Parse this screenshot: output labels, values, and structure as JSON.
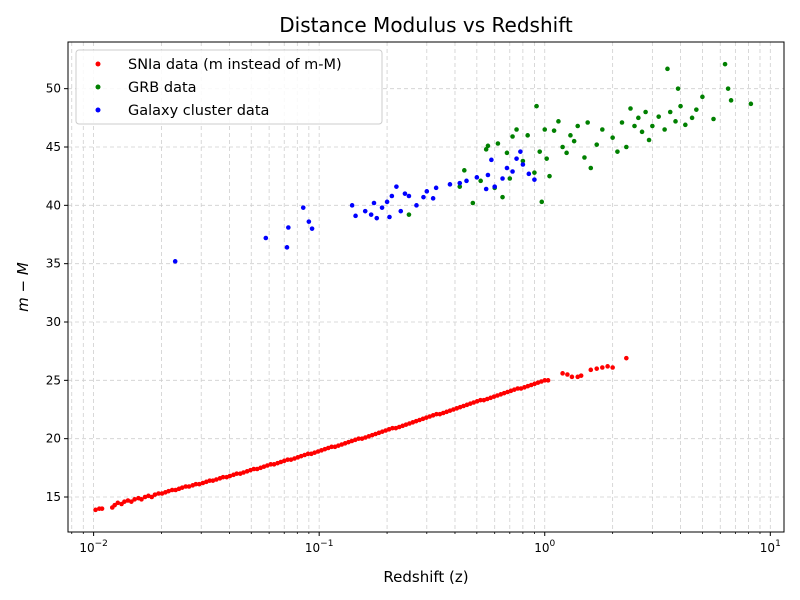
{
  "chart_data": {
    "type": "scatter",
    "title": "Distance Modulus vs Redshift",
    "xlabel": "Redshift (z)",
    "ylabel": "m − M",
    "xscale": "log",
    "xlim": [
      0.0077,
      11.5
    ],
    "ylim": [
      12.0,
      54.0
    ],
    "x_ticks": [
      {
        "value": 0.01,
        "base": "10",
        "exp": "−2"
      },
      {
        "value": 0.1,
        "base": "10",
        "exp": "−1"
      },
      {
        "value": 1,
        "base": "10",
        "exp": "0"
      },
      {
        "value": 10,
        "base": "10",
        "exp": "1"
      }
    ],
    "y_ticks": [
      15,
      20,
      25,
      30,
      35,
      40,
      45,
      50
    ],
    "grid": true,
    "legend_position": "top-left",
    "series": [
      {
        "name": "SNIa data (m instead of m-M)",
        "color": "#ff0000",
        "points": [
          [
            0.0102,
            13.9
          ],
          [
            0.0106,
            14.0
          ],
          [
            0.0109,
            14.0
          ],
          [
            0.0121,
            14.1
          ],
          [
            0.0124,
            14.3
          ],
          [
            0.0128,
            14.5
          ],
          [
            0.0133,
            14.4
          ],
          [
            0.0137,
            14.6
          ],
          [
            0.0142,
            14.7
          ],
          [
            0.0147,
            14.6
          ],
          [
            0.0152,
            14.8
          ],
          [
            0.0158,
            14.9
          ],
          [
            0.0163,
            14.8
          ],
          [
            0.0169,
            15.0
          ],
          [
            0.0175,
            15.1
          ],
          [
            0.0181,
            15.0
          ],
          [
            0.0187,
            15.2
          ],
          [
            0.0194,
            15.3
          ],
          [
            0.0201,
            15.3
          ],
          [
            0.0208,
            15.4
          ],
          [
            0.0215,
            15.5
          ],
          [
            0.0223,
            15.6
          ],
          [
            0.0231,
            15.6
          ],
          [
            0.0239,
            15.7
          ],
          [
            0.0247,
            15.8
          ],
          [
            0.0256,
            15.9
          ],
          [
            0.0265,
            15.9
          ],
          [
            0.0275,
            16.0
          ],
          [
            0.0284,
            16.1
          ],
          [
            0.0294,
            16.1
          ],
          [
            0.0305,
            16.2
          ],
          [
            0.0316,
            16.3
          ],
          [
            0.0327,
            16.4
          ],
          [
            0.0338,
            16.4
          ],
          [
            0.035,
            16.5
          ],
          [
            0.0363,
            16.6
          ],
          [
            0.0375,
            16.7
          ],
          [
            0.0389,
            16.7
          ],
          [
            0.0402,
            16.8
          ],
          [
            0.0417,
            16.9
          ],
          [
            0.0431,
            17.0
          ],
          [
            0.0447,
            17.0
          ],
          [
            0.0462,
            17.1
          ],
          [
            0.0479,
            17.2
          ],
          [
            0.0496,
            17.3
          ],
          [
            0.0513,
            17.4
          ],
          [
            0.0531,
            17.4
          ],
          [
            0.055,
            17.5
          ],
          [
            0.0569,
            17.6
          ],
          [
            0.0589,
            17.7
          ],
          [
            0.061,
            17.8
          ],
          [
            0.0631,
            17.8
          ],
          [
            0.0654,
            17.9
          ],
          [
            0.0676,
            18.0
          ],
          [
            0.07,
            18.1
          ],
          [
            0.0725,
            18.2
          ],
          [
            0.075,
            18.2
          ],
          [
            0.0777,
            18.3
          ],
          [
            0.0804,
            18.4
          ],
          [
            0.0832,
            18.5
          ],
          [
            0.0862,
            18.6
          ],
          [
            0.0892,
            18.7
          ],
          [
            0.0923,
            18.7
          ],
          [
            0.0955,
            18.8
          ],
          [
            0.0989,
            18.9
          ],
          [
            0.1024,
            19.0
          ],
          [
            0.106,
            19.1
          ],
          [
            0.1097,
            19.2
          ],
          [
            0.1135,
            19.3
          ],
          [
            0.1175,
            19.3
          ],
          [
            0.1216,
            19.4
          ],
          [
            0.1259,
            19.5
          ],
          [
            0.1303,
            19.6
          ],
          [
            0.1349,
            19.7
          ],
          [
            0.1396,
            19.8
          ],
          [
            0.1445,
            19.9
          ],
          [
            0.1496,
            20.0
          ],
          [
            0.1549,
            20.0
          ],
          [
            0.1603,
            20.1
          ],
          [
            0.1659,
            20.2
          ],
          [
            0.1718,
            20.3
          ],
          [
            0.1778,
            20.4
          ],
          [
            0.184,
            20.5
          ],
          [
            0.1905,
            20.6
          ],
          [
            0.1972,
            20.7
          ],
          [
            0.2041,
            20.8
          ],
          [
            0.2113,
            20.9
          ],
          [
            0.2187,
            20.9
          ],
          [
            0.2264,
            21.0
          ],
          [
            0.2344,
            21.1
          ],
          [
            0.2426,
            21.2
          ],
          [
            0.2512,
            21.3
          ],
          [
            0.26,
            21.4
          ],
          [
            0.2691,
            21.5
          ],
          [
            0.2786,
            21.6
          ],
          [
            0.2884,
            21.7
          ],
          [
            0.2985,
            21.8
          ],
          [
            0.309,
            21.9
          ],
          [
            0.3199,
            22.0
          ],
          [
            0.3311,
            22.1
          ],
          [
            0.3428,
            22.1
          ],
          [
            0.3548,
            22.2
          ],
          [
            0.3673,
            22.3
          ],
          [
            0.3802,
            22.4
          ],
          [
            0.3936,
            22.5
          ],
          [
            0.4074,
            22.6
          ],
          [
            0.4217,
            22.7
          ],
          [
            0.4365,
            22.8
          ],
          [
            0.4519,
            22.9
          ],
          [
            0.4677,
            23.0
          ],
          [
            0.4842,
            23.1
          ],
          [
            0.5012,
            23.2
          ],
          [
            0.5188,
            23.3
          ],
          [
            0.537,
            23.3
          ],
          [
            0.5559,
            23.4
          ],
          [
            0.5754,
            23.5
          ],
          [
            0.5957,
            23.6
          ],
          [
            0.6166,
            23.7
          ],
          [
            0.6383,
            23.8
          ],
          [
            0.6607,
            23.9
          ],
          [
            0.6839,
            24.0
          ],
          [
            0.7079,
            24.1
          ],
          [
            0.7328,
            24.2
          ],
          [
            0.7586,
            24.3
          ],
          [
            0.7852,
            24.3
          ],
          [
            0.8128,
            24.4
          ],
          [
            0.8414,
            24.5
          ],
          [
            0.871,
            24.6
          ],
          [
            0.9016,
            24.7
          ],
          [
            0.9333,
            24.8
          ],
          [
            0.9661,
            24.9
          ],
          [
            1.0,
            25.0
          ],
          [
            1.0351,
            25.0
          ],
          [
            1.2,
            25.6
          ],
          [
            1.26,
            25.5
          ],
          [
            1.32,
            25.3
          ],
          [
            1.4,
            25.3
          ],
          [
            1.45,
            25.4
          ],
          [
            1.6,
            25.9
          ],
          [
            1.7,
            26.0
          ],
          [
            1.8,
            26.1
          ],
          [
            1.9,
            26.2
          ],
          [
            2.0,
            26.1
          ],
          [
            2.3,
            26.9
          ]
        ]
      },
      {
        "name": "GRB data",
        "color": "#008000",
        "points": [
          [
            0.25,
            39.2
          ],
          [
            0.42,
            41.6
          ],
          [
            0.44,
            43.0
          ],
          [
            0.48,
            40.2
          ],
          [
            0.52,
            42.1
          ],
          [
            0.55,
            44.8
          ],
          [
            0.56,
            45.1
          ],
          [
            0.6,
            41.5
          ],
          [
            0.62,
            45.3
          ],
          [
            0.65,
            40.7
          ],
          [
            0.68,
            44.5
          ],
          [
            0.7,
            42.3
          ],
          [
            0.72,
            45.9
          ],
          [
            0.75,
            46.5
          ],
          [
            0.8,
            43.8
          ],
          [
            0.84,
            46.0
          ],
          [
            0.9,
            42.8
          ],
          [
            0.92,
            48.5
          ],
          [
            0.95,
            44.6
          ],
          [
            0.97,
            40.3
          ],
          [
            1.0,
            46.5
          ],
          [
            1.02,
            44.0
          ],
          [
            1.05,
            42.5
          ],
          [
            1.1,
            46.4
          ],
          [
            1.15,
            47.2
          ],
          [
            1.2,
            45.0
          ],
          [
            1.25,
            44.5
          ],
          [
            1.3,
            46.0
          ],
          [
            1.35,
            45.5
          ],
          [
            1.4,
            46.8
          ],
          [
            1.5,
            44.1
          ],
          [
            1.55,
            47.1
          ],
          [
            1.6,
            43.2
          ],
          [
            1.7,
            45.2
          ],
          [
            1.8,
            46.5
          ],
          [
            2.0,
            45.8
          ],
          [
            2.1,
            44.6
          ],
          [
            2.2,
            47.1
          ],
          [
            2.3,
            45.0
          ],
          [
            2.4,
            48.3
          ],
          [
            2.5,
            46.8
          ],
          [
            2.6,
            47.5
          ],
          [
            2.7,
            46.3
          ],
          [
            2.8,
            48.0
          ],
          [
            2.9,
            45.6
          ],
          [
            3.0,
            46.8
          ],
          [
            3.2,
            47.6
          ],
          [
            3.4,
            46.5
          ],
          [
            3.5,
            51.7
          ],
          [
            3.6,
            48.0
          ],
          [
            3.8,
            47.2
          ],
          [
            3.9,
            50.0
          ],
          [
            4.0,
            48.5
          ],
          [
            4.2,
            46.9
          ],
          [
            4.5,
            47.5
          ],
          [
            4.7,
            48.2
          ],
          [
            5.0,
            49.3
          ],
          [
            5.6,
            47.4
          ],
          [
            6.3,
            52.1
          ],
          [
            6.5,
            50.0
          ],
          [
            6.7,
            49.0
          ],
          [
            8.2,
            48.7
          ]
        ]
      },
      {
        "name": "Galaxy cluster data",
        "color": "#0000ff",
        "points": [
          [
            0.023,
            35.2
          ],
          [
            0.058,
            37.2
          ],
          [
            0.072,
            36.4
          ],
          [
            0.073,
            38.1
          ],
          [
            0.085,
            39.8
          ],
          [
            0.09,
            38.6
          ],
          [
            0.093,
            38.0
          ],
          [
            0.14,
            40.0
          ],
          [
            0.145,
            39.1
          ],
          [
            0.16,
            39.5
          ],
          [
            0.17,
            39.2
          ],
          [
            0.175,
            40.2
          ],
          [
            0.18,
            38.9
          ],
          [
            0.19,
            39.8
          ],
          [
            0.2,
            40.3
          ],
          [
            0.205,
            39.0
          ],
          [
            0.21,
            40.8
          ],
          [
            0.22,
            41.6
          ],
          [
            0.23,
            39.5
          ],
          [
            0.24,
            41.0
          ],
          [
            0.25,
            40.8
          ],
          [
            0.27,
            40.0
          ],
          [
            0.29,
            40.7
          ],
          [
            0.3,
            41.2
          ],
          [
            0.32,
            40.6
          ],
          [
            0.33,
            41.5
          ],
          [
            0.38,
            41.8
          ],
          [
            0.42,
            41.9
          ],
          [
            0.45,
            42.1
          ],
          [
            0.5,
            42.4
          ],
          [
            0.55,
            41.4
          ],
          [
            0.56,
            42.6
          ],
          [
            0.58,
            43.9
          ],
          [
            0.6,
            41.6
          ],
          [
            0.65,
            42.3
          ],
          [
            0.68,
            43.2
          ],
          [
            0.72,
            42.9
          ],
          [
            0.75,
            44.0
          ],
          [
            0.78,
            44.6
          ],
          [
            0.8,
            43.5
          ],
          [
            0.85,
            42.7
          ],
          [
            0.9,
            42.2
          ]
        ]
      }
    ]
  }
}
